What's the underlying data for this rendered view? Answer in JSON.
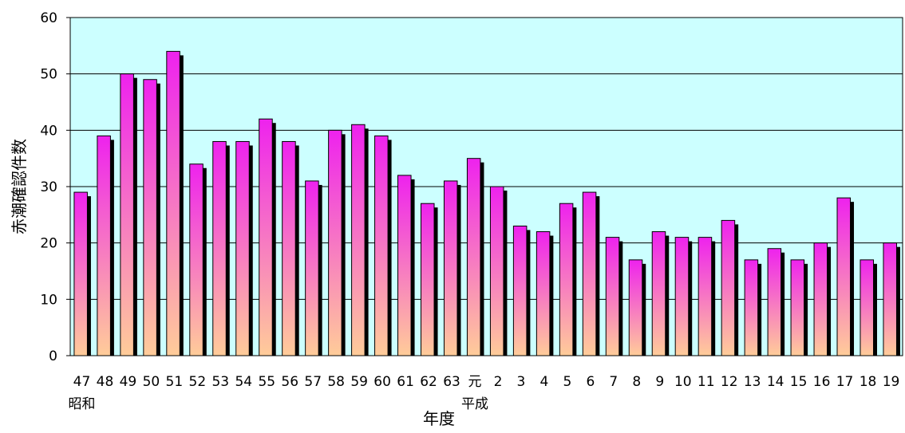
{
  "chart_data": {
    "type": "bar",
    "title": "",
    "xlabel": "年度",
    "ylabel": "赤潮確認件数",
    "ylim": [
      0,
      60
    ],
    "yticks": [
      0,
      10,
      20,
      30,
      40,
      50,
      60
    ],
    "grid": true,
    "legend": "none",
    "categories": [
      "47",
      "48",
      "49",
      "50",
      "51",
      "52",
      "53",
      "54",
      "55",
      "56",
      "57",
      "58",
      "59",
      "60",
      "61",
      "62",
      "63",
      "元",
      "2",
      "3",
      "4",
      "5",
      "6",
      "7",
      "8",
      "9",
      "10",
      "11",
      "12",
      "13",
      "14",
      "15",
      "16",
      "17",
      "18",
      "19"
    ],
    "era_labels": [
      {
        "category_index": 0,
        "text": "昭和"
      },
      {
        "category_index": 17,
        "text": "平成"
      }
    ],
    "values": [
      29,
      39,
      50,
      49,
      54,
      34,
      38,
      38,
      42,
      38,
      31,
      40,
      41,
      39,
      32,
      27,
      31,
      35,
      30,
      23,
      22,
      27,
      29,
      21,
      17,
      22,
      21,
      21,
      24,
      17,
      19,
      17,
      20,
      28,
      17,
      20
    ],
    "colors": {
      "plot_background": "#ccffff",
      "bar_top": "#ee22ee",
      "bar_bottom": "#ffcc99",
      "bar_shadow": "#000000",
      "gridline": "#000000"
    }
  }
}
